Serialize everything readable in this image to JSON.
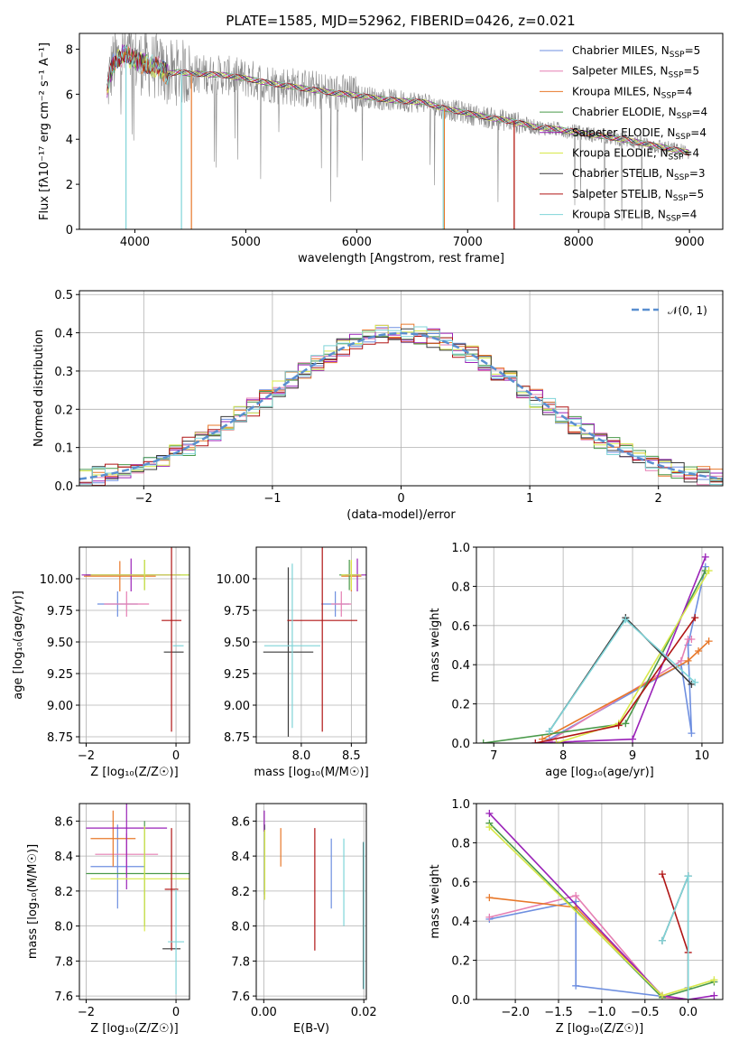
{
  "title": "PLATE=1585, MJD=52962, FIBERID=0426, z=0.021",
  "colors": {
    "chabrier_miles": "#6e8fe0",
    "salpeter_miles": "#e57fb3",
    "kroupa_miles": "#e8782a",
    "chabrier_elodie": "#4a9a4a",
    "salpeter_elodie": "#9a22b8",
    "kroupa_elodie": "#d8e84a",
    "chabrier_stelib": "#3a3a3a",
    "salpeter_stelib": "#b01515",
    "kroupa_stelib": "#7fd4d8",
    "data_spectrum": "#888888",
    "normal_curve": "#5a8fd0",
    "grid": "#b0b0b0"
  },
  "chart_data": [
    {
      "id": "spectrum",
      "type": "line",
      "xlabel": "wavelength [Angstrom, rest frame]",
      "ylabel": "Flux [fλ10⁻¹⁷ erg cm⁻² s⁻¹ A⁻¹]",
      "xlim": [
        3500,
        9300
      ],
      "ylim": [
        0,
        8.7
      ],
      "xticks": [
        4000,
        5000,
        6000,
        7000,
        8000,
        9000
      ],
      "yticks": [
        0,
        2,
        4,
        6,
        8
      ],
      "legend_position": "top-right",
      "legend": [
        {
          "name": "Chabrier MILES, N",
          "n": "5",
          "color_key": "chabrier_miles"
        },
        {
          "name": "Salpeter MILES, N",
          "n": "5",
          "color_key": "salpeter_miles"
        },
        {
          "name": "Kroupa MILES, N",
          "n": "4",
          "color_key": "kroupa_miles"
        },
        {
          "name": "Chabrier ELODIE, N",
          "n": "4",
          "color_key": "chabrier_elodie"
        },
        {
          "name": "Salpeter ELODIE, N",
          "n": "4",
          "color_key": "salpeter_elodie"
        },
        {
          "name": "Kroupa ELODIE, N",
          "n": "4",
          "color_key": "kroupa_elodie"
        },
        {
          "name": "Chabrier STELIB, N",
          "n": "3",
          "color_key": "chabrier_stelib"
        },
        {
          "name": "Salpeter STELIB, N",
          "n": "5",
          "color_key": "salpeter_stelib"
        },
        {
          "name": "Kroupa STELIB, N",
          "n": "4",
          "color_key": "kroupa_stelib"
        }
      ],
      "legend_subscript": "SSP",
      "model_continuum": {
        "x": [
          3750,
          3800,
          3900,
          4000,
          4100,
          4200,
          4300,
          4400,
          4500,
          4600,
          4800,
          5000,
          5200,
          5400,
          5600,
          5800,
          6000,
          6200,
          6400,
          6600,
          6800,
          7000,
          7200,
          7400,
          7600,
          7800,
          8000,
          8200,
          8400,
          8600,
          8800,
          9000
        ],
        "y": [
          6.3,
          7.3,
          7.8,
          7.5,
          7.35,
          7.2,
          6.9,
          7.0,
          6.9,
          6.9,
          6.85,
          6.7,
          6.5,
          6.35,
          6.2,
          6.05,
          5.95,
          5.8,
          5.7,
          5.65,
          5.35,
          5.15,
          4.95,
          4.8,
          4.55,
          4.45,
          4.3,
          4.15,
          4.0,
          3.8,
          3.6,
          3.4
        ]
      },
      "model_drops": [
        {
          "color_key": "kroupa_miles",
          "x": 4510
        },
        {
          "color_key": "kroupa_miles",
          "x": 6790
        },
        {
          "color_key": "kroupa_miles",
          "x": 7420
        },
        {
          "color_key": "kroupa_stelib",
          "x": 3920
        },
        {
          "color_key": "kroupa_stelib",
          "x": 4420
        },
        {
          "color_key": "kroupa_stelib",
          "x": 6780
        },
        {
          "color_key": "salpeter_stelib",
          "x": 7420
        }
      ]
    },
    {
      "id": "residuals",
      "type": "line",
      "xlabel": "(data-model)/error",
      "ylabel": "Normed distribution",
      "xlim": [
        -2.5,
        2.5
      ],
      "ylim": [
        0,
        0.51
      ],
      "xticks": [
        -2,
        -1,
        0,
        1,
        2
      ],
      "xtick_labels": [
        "−2",
        "−1",
        "0",
        "1",
        "2"
      ],
      "yticks": [
        0.0,
        0.1,
        0.2,
        0.3,
        0.4,
        0.5
      ],
      "ytick_labels": [
        "0.0",
        "0.1",
        "0.2",
        "0.3",
        "0.4",
        "0.5"
      ],
      "legend_position": "top-right",
      "legend_label": "𝒩(0, 1)",
      "bin_width": 0.1,
      "normal": {
        "mean": 0,
        "sigma": 1
      }
    },
    {
      "id": "z-age",
      "type": "scatter",
      "xlabel": "Z [log₁₀(Z/Z☉)]",
      "ylabel": "age  [log₁₀(age/yr)]",
      "xlim": [
        -2.15,
        0.3
      ],
      "ylim": [
        8.7,
        10.25
      ],
      "xticks": [
        -2,
        0
      ],
      "xtick_labels": [
        "−2",
        "0"
      ],
      "yticks": [
        8.75,
        9.0,
        9.25,
        9.5,
        9.75,
        10.0
      ],
      "ytick_labels": [
        "8.75",
        "9.00",
        "9.25",
        "9.50",
        "9.75",
        "10.00"
      ],
      "points": [
        {
          "c": "chabrier_miles",
          "x": -1.3,
          "xe": 0.45,
          "y": 9.8,
          "ye": 0.1
        },
        {
          "c": "salpeter_miles",
          "x": -1.1,
          "xe": 0.5,
          "y": 9.8,
          "ye": 0.1
        },
        {
          "c": "kroupa_miles",
          "x": -1.25,
          "xe": 0.8,
          "y": 10.02,
          "ye": 0.12
        },
        {
          "c": "chabrier_elodie",
          "x": -0.7,
          "xe": 1.3,
          "y": 10.03,
          "ye": 0.12
        },
        {
          "c": "salpeter_elodie",
          "x": -1.0,
          "xe": 1.1,
          "y": 10.03,
          "ye": 0.13
        },
        {
          "c": "kroupa_elodie",
          "x": -0.7,
          "xe": 1.2,
          "y": 10.03,
          "ye": 0.12
        },
        {
          "c": "chabrier_stelib",
          "x": -0.05,
          "xe": 0.22,
          "y": 9.42,
          "ye": 0.0
        },
        {
          "c": "salpeter_stelib",
          "x": -0.1,
          "xe": 0.22,
          "y": 9.67,
          "ye": 0.88
        },
        {
          "c": "kroupa_stelib",
          "x": 0.05,
          "xe": 0.12,
          "y": 9.47,
          "ye": 0.0
        }
      ]
    },
    {
      "id": "mass-age",
      "type": "scatter",
      "xlabel": "mass [log₁₀(M/M☉)]",
      "xlim": [
        7.55,
        8.65
      ],
      "ylim": [
        8.7,
        10.25
      ],
      "xticks": [
        8.0,
        8.5
      ],
      "xtick_labels": [
        "8.0",
        "8.5"
      ],
      "yticks": [
        8.75,
        9.0,
        9.25,
        9.5,
        9.75,
        10.0
      ],
      "ytick_labels": [
        "8.75",
        "9.00",
        "9.25",
        "9.50",
        "9.75",
        "10.00"
      ],
      "points": [
        {
          "c": "chabrier_miles",
          "x": 8.34,
          "xe": 0.14,
          "y": 9.8,
          "ye": 0.1
        },
        {
          "c": "salpeter_miles",
          "x": 8.4,
          "xe": 0.1,
          "y": 9.8,
          "ye": 0.1
        },
        {
          "c": "kroupa_miles",
          "x": 8.5,
          "xe": 0.1,
          "y": 10.02,
          "ye": 0.12
        },
        {
          "c": "chabrier_elodie",
          "x": 8.48,
          "xe": 0.1,
          "y": 10.03,
          "ye": 0.12
        },
        {
          "c": "salpeter_elodie",
          "x": 8.56,
          "xe": 0.12,
          "y": 10.03,
          "ye": 0.13
        },
        {
          "c": "kroupa_elodie",
          "x": 8.5,
          "xe": 0.1,
          "y": 10.03,
          "ye": 0.12
        },
        {
          "c": "chabrier_stelib",
          "x": 7.87,
          "xe": 0.25,
          "y": 9.42,
          "ye": 0.67
        },
        {
          "c": "salpeter_stelib",
          "x": 8.21,
          "xe": 0.35,
          "y": 9.67,
          "ye": 0.88
        },
        {
          "c": "kroupa_stelib",
          "x": 7.91,
          "xe": 0.28,
          "y": 9.47,
          "ye": 0.65
        }
      ]
    },
    {
      "id": "age-weight",
      "type": "line",
      "xlabel": "age  [log₁₀(age/yr)]",
      "ylabel": "mass weight",
      "xlim": [
        6.75,
        10.3
      ],
      "ylim": [
        0,
        1.0
      ],
      "xticks": [
        7,
        8,
        9,
        10
      ],
      "yticks": [
        0.0,
        0.2,
        0.4,
        0.6,
        0.8,
        1.0
      ],
      "ytick_labels": [
        "0.0",
        "0.2",
        "0.4",
        "0.6",
        "0.8",
        "1.0"
      ],
      "series": [
        {
          "c": "chabrier_miles",
          "x": [
            7.8,
            9.7,
            9.85,
            9.8,
            10.05
          ],
          "y": [
            0.02,
            0.4,
            0.05,
            0.5,
            0.9
          ]
        },
        {
          "c": "salpeter_miles",
          "x": [
            7.8,
            9.7,
            9.8,
            9.85
          ],
          "y": [
            0.01,
            0.42,
            0.53,
            0.53
          ]
        },
        {
          "c": "kroupa_miles",
          "x": [
            7.7,
            9.8,
            9.95,
            10.1
          ],
          "y": [
            0.02,
            0.42,
            0.47,
            0.52
          ]
        },
        {
          "c": "chabrier_elodie",
          "x": [
            6.85,
            8.9,
            10.05
          ],
          "y": [
            0.0,
            0.1,
            0.88
          ]
        },
        {
          "c": "salpeter_elodie",
          "x": [
            7.6,
            9.0,
            10.05
          ],
          "y": [
            0.0,
            0.02,
            0.95
          ]
        },
        {
          "c": "kroupa_elodie",
          "x": [
            7.9,
            8.8,
            10.1
          ],
          "y": [
            0.0,
            0.1,
            0.88
          ]
        },
        {
          "c": "chabrier_stelib",
          "x": [
            7.8,
            8.9,
            9.85
          ],
          "y": [
            0.06,
            0.64,
            0.3
          ]
        },
        {
          "c": "salpeter_stelib",
          "x": [
            7.6,
            8.8,
            9.9
          ],
          "y": [
            0.0,
            0.09,
            0.64
          ]
        },
        {
          "c": "kroupa_stelib",
          "x": [
            7.8,
            8.9,
            9.9
          ],
          "y": [
            0.06,
            0.63,
            0.31
          ]
        }
      ]
    },
    {
      "id": "z-mass",
      "type": "scatter",
      "xlabel": "Z [log₁₀(Z/Z☉)]",
      "ylabel": "mass [log₁₀(M/M☉)]",
      "xlim": [
        -2.15,
        0.3
      ],
      "ylim": [
        7.58,
        8.7
      ],
      "xticks": [
        -2,
        0
      ],
      "xtick_labels": [
        "−2",
        "0"
      ],
      "yticks": [
        7.6,
        7.8,
        8.0,
        8.2,
        8.4,
        8.6
      ],
      "ytick_labels": [
        "7.6",
        "7.8",
        "8.0",
        "8.2",
        "8.4",
        "8.6"
      ],
      "points": [
        {
          "c": "chabrier_miles",
          "x": -1.3,
          "xe": 0.6,
          "y": 8.34,
          "ye": 0.24
        },
        {
          "c": "salpeter_miles",
          "x": -1.1,
          "xe": 0.7,
          "y": 8.41,
          "ye": 0.12
        },
        {
          "c": "kroupa_miles",
          "x": -1.4,
          "xe": 0.5,
          "y": 8.5,
          "ye": 0.16
        },
        {
          "c": "chabrier_elodie",
          "x": -0.7,
          "xe": 1.3,
          "y": 8.3,
          "ye": 0.3
        },
        {
          "c": "salpeter_elodie",
          "x": -1.1,
          "xe": 0.9,
          "y": 8.56,
          "ye": 0.35
        },
        {
          "c": "kroupa_elodie",
          "x": -0.7,
          "xe": 1.2,
          "y": 8.27,
          "ye": 0.3
        },
        {
          "c": "chabrier_stelib",
          "x": -0.1,
          "xe": 0.2,
          "y": 7.87,
          "ye": 0.0
        },
        {
          "c": "salpeter_stelib",
          "x": -0.1,
          "xe": 0.15,
          "y": 8.21,
          "ye": 0.35
        },
        {
          "c": "kroupa_stelib",
          "x": 0.0,
          "xe": 0.18,
          "y": 7.91,
          "ye": 0.3
        }
      ]
    },
    {
      "id": "ebv-mass",
      "type": "scatter",
      "xlabel": "E(B-V)",
      "xlim": [
        -0.0015,
        0.0205
      ],
      "ylim": [
        7.58,
        8.7
      ],
      "xticks": [
        0.0,
        0.02
      ],
      "xtick_labels": [
        "0.00",
        "0.02"
      ],
      "yticks": [
        7.6,
        7.8,
        8.0,
        8.2,
        8.4,
        8.6
      ],
      "ytick_labels": [
        "7.6",
        "7.8",
        "8.0",
        "8.2",
        "8.4",
        "8.6"
      ],
      "points": [
        {
          "c": "chabrier_miles",
          "x": 0.0135,
          "y": 8.3,
          "ye": 0.2
        },
        {
          "c": "kroupa_miles",
          "x": 0.0034,
          "y": 8.45,
          "ye": 0.11
        },
        {
          "c": "chabrier_elodie",
          "x": 0.0002,
          "y": 8.38,
          "ye": 0.2
        },
        {
          "c": "salpeter_elodie",
          "x": 0.0001,
          "y": 8.6,
          "ye": 0.06
        },
        {
          "c": "kroupa_elodie",
          "x": 0.0002,
          "y": 8.35,
          "ye": 0.2
        },
        {
          "c": "salpeter_stelib",
          "x": 0.0102,
          "y": 8.21,
          "ye": 0.35
        },
        {
          "c": "kroupa_stelib",
          "x": 0.016,
          "y": 8.25,
          "ye": 0.25
        },
        {
          "c": "chabrier_stelib",
          "x": 0.0199,
          "y": 8.06,
          "ye": 0.42
        },
        {
          "c": "kroupa_stelib",
          "x": 0.02,
          "y": 8.06,
          "ye": 0.42
        }
      ]
    },
    {
      "id": "z-weight",
      "type": "line",
      "xlabel": "Z [log₁₀(Z/Z☉)]",
      "ylabel": "mass weight",
      "xlim": [
        -2.45,
        0.4
      ],
      "ylim": [
        0,
        1.0
      ],
      "xticks": [
        -2.0,
        -1.5,
        -1.0,
        -0.5,
        0.0
      ],
      "xtick_labels": [
        "−2.0",
        "−1.5",
        "−1.0",
        "−0.5",
        "0.0"
      ],
      "yticks": [
        0.0,
        0.2,
        0.4,
        0.6,
        0.8,
        1.0
      ],
      "ytick_labels": [
        "0.0",
        "0.2",
        "0.4",
        "0.6",
        "0.8",
        "1.0"
      ],
      "series": [
        {
          "c": "chabrier_miles",
          "x": [
            -2.3,
            -1.3,
            -1.3,
            0.0,
            0.0
          ],
          "y": [
            0.41,
            0.5,
            0.07,
            0.0,
            0.06
          ]
        },
        {
          "c": "salpeter_miles",
          "x": [
            -2.3,
            -1.3,
            -0.3,
            0.0
          ],
          "y": [
            0.42,
            0.53,
            0.01,
            0.0
          ]
        },
        {
          "c": "kroupa_miles",
          "x": [
            -2.3,
            -1.3,
            -0.3,
            0.0
          ],
          "y": [
            0.52,
            0.47,
            0.02,
            0.0
          ]
        },
        {
          "c": "chabrier_elodie",
          "x": [
            -2.3,
            -0.3,
            0.3
          ],
          "y": [
            0.9,
            0.01,
            0.09
          ]
        },
        {
          "c": "salpeter_elodie",
          "x": [
            -2.3,
            -0.3,
            0.0,
            0.3
          ],
          "y": [
            0.95,
            0.02,
            0.0,
            0.02
          ]
        },
        {
          "c": "kroupa_elodie",
          "x": [
            -2.3,
            -0.3,
            0.3
          ],
          "y": [
            0.88,
            0.02,
            0.1
          ]
        },
        {
          "c": "chabrier_stelib",
          "x": [
            -0.3,
            0.0,
            0.0
          ],
          "y": [
            0.3,
            0.63,
            0.0
          ]
        },
        {
          "c": "salpeter_stelib",
          "x": [
            -0.3,
            0.0,
            0.0
          ],
          "y": [
            0.64,
            0.24,
            0.0
          ]
        },
        {
          "c": "kroupa_stelib",
          "x": [
            -0.3,
            0.0,
            0.0
          ],
          "y": [
            0.3,
            0.63,
            0.0
          ]
        }
      ]
    }
  ]
}
